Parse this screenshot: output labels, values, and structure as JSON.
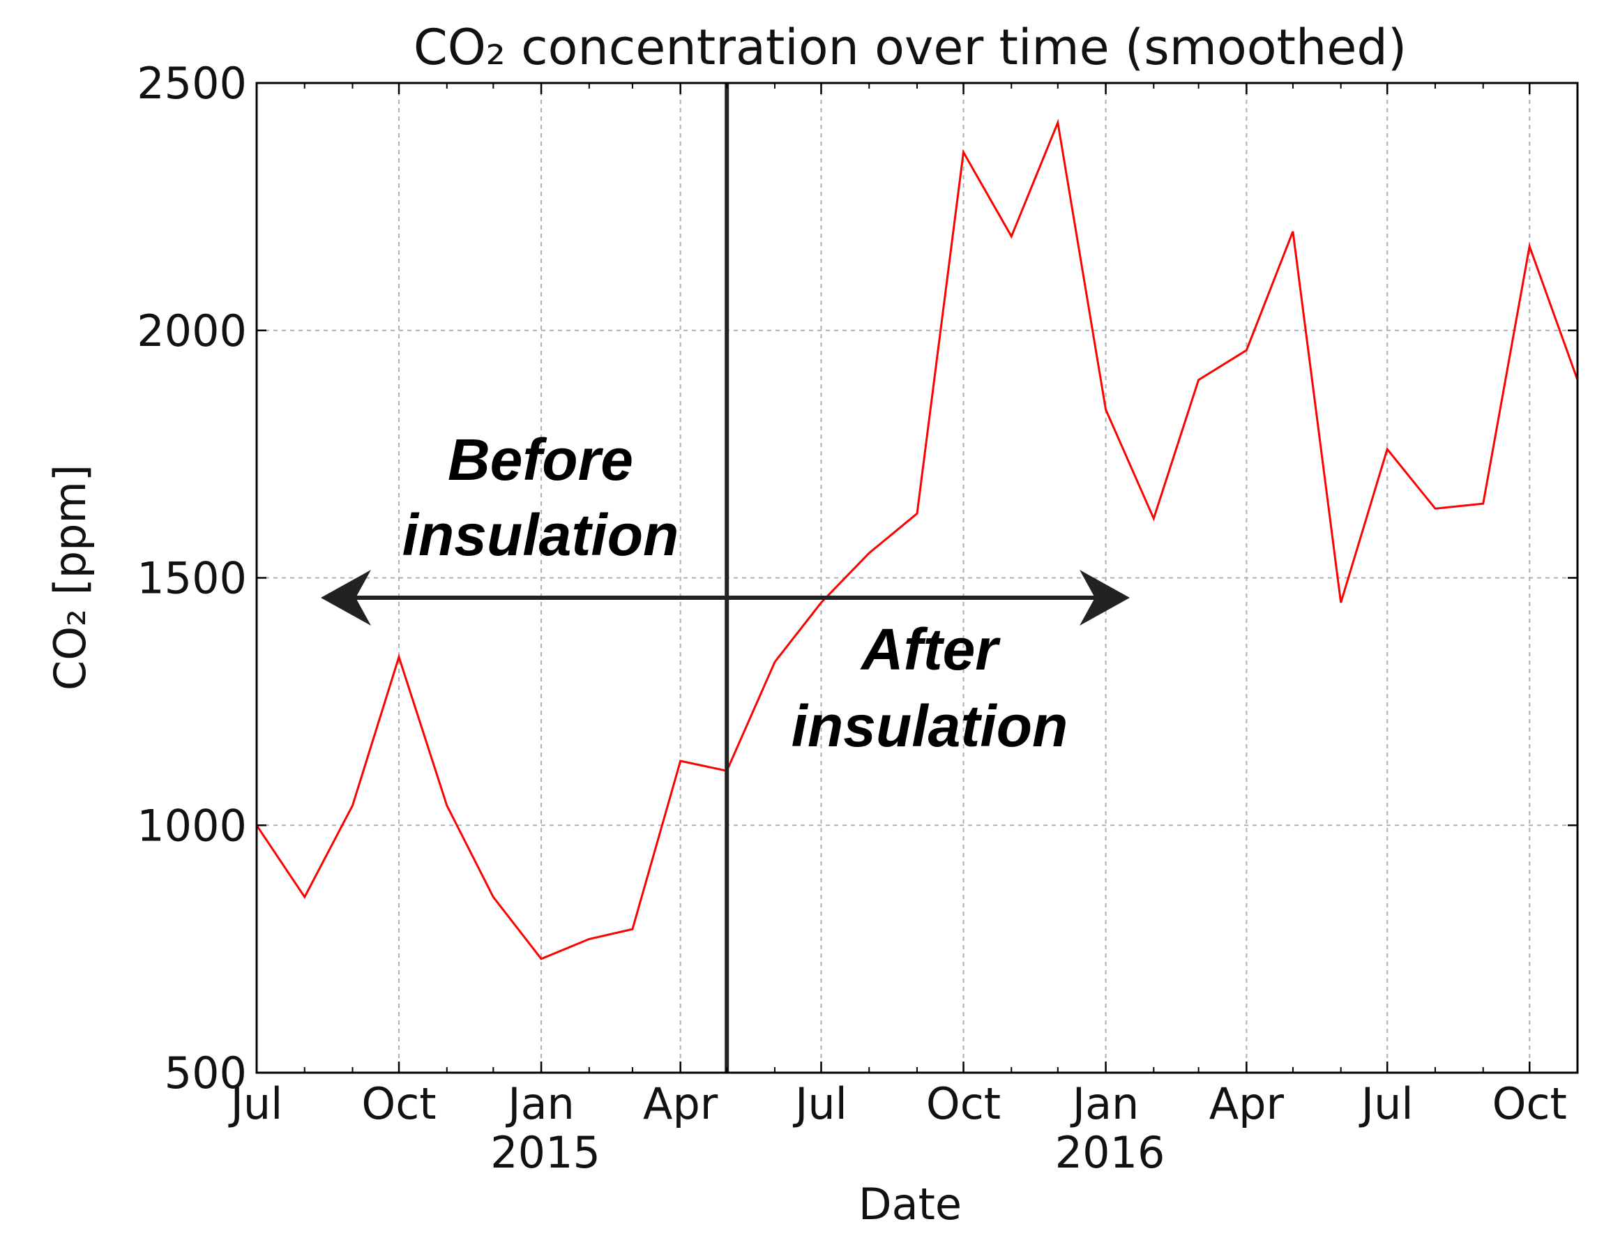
{
  "chart_data": {
    "type": "line",
    "title": "CO₂ concentration over time (smoothed)",
    "xlabel": "Date",
    "ylabel": "CO₂ [ppm]",
    "ylim": [
      500,
      2500
    ],
    "xlim": [
      "2014-07-01",
      "2016-11-01"
    ],
    "grid": true,
    "y_ticks": [
      "500",
      "1000",
      "1500",
      "2000",
      "2500"
    ],
    "x_ticks": [
      {
        "date": "2014-07-01",
        "label": "Jul",
        "year": ""
      },
      {
        "date": "2014-10-01",
        "label": "Oct",
        "year": ""
      },
      {
        "date": "2015-01-01",
        "label": "Jan",
        "year": "2015"
      },
      {
        "date": "2015-04-01",
        "label": "Apr",
        "year": ""
      },
      {
        "date": "2015-07-01",
        "label": "Jul",
        "year": ""
      },
      {
        "date": "2015-10-01",
        "label": "Oct",
        "year": ""
      },
      {
        "date": "2016-01-01",
        "label": "Jan",
        "year": "2016"
      },
      {
        "date": "2016-04-01",
        "label": "Apr",
        "year": ""
      },
      {
        "date": "2016-07-01",
        "label": "Jul",
        "year": ""
      },
      {
        "date": "2016-10-01",
        "label": "Oct",
        "year": ""
      }
    ],
    "series": [
      {
        "color": "#ff0000",
        "x": [
          "2014-07-01",
          "2014-08-01",
          "2014-09-01",
          "2014-10-01",
          "2014-11-01",
          "2014-12-01",
          "2015-01-01",
          "2015-02-01",
          "2015-03-01",
          "2015-04-01",
          "2015-05-01",
          "2015-06-01",
          "2015-07-01",
          "2015-08-01",
          "2015-09-01",
          "2015-10-01",
          "2015-11-01",
          "2015-12-01",
          "2016-01-01",
          "2016-02-01",
          "2016-03-01",
          "2016-04-01",
          "2016-05-01",
          "2016-06-01",
          "2016-07-01",
          "2016-08-01",
          "2016-09-01",
          "2016-10-01",
          "2016-11-01"
        ],
        "y": [
          1000,
          855,
          1040,
          1340,
          1040,
          855,
          730,
          770,
          790,
          1130,
          1110,
          1330,
          1450,
          1550,
          1630,
          2360,
          2190,
          2420,
          1840,
          1620,
          1900,
          1960,
          2200,
          1450,
          1760,
          1640,
          1650,
          2170,
          1900
        ]
      }
    ],
    "annotations": {
      "divider_date": "2015-05-01",
      "before_label_line1": "Before",
      "before_label_line2": "insulation",
      "after_label_line1": "After",
      "after_label_line2": "insulation"
    },
    "colors": {
      "line": "#ff0000",
      "grid": "#b0b0b0",
      "axes": "#000000",
      "divider": "#222222",
      "arrow": "#222222"
    }
  }
}
